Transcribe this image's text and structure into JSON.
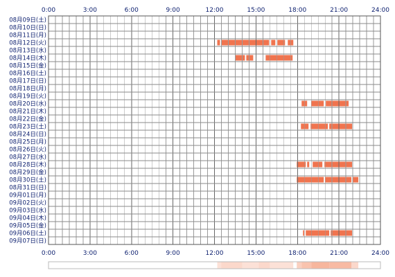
{
  "chart_data": {
    "type": "heatmap",
    "title": "",
    "xlabel": "",
    "ylabel": "",
    "x_range_hours": [
      0,
      24
    ],
    "x_ticks": [
      "0:00",
      "3:00",
      "6:00",
      "9:00",
      "12:00",
      "15:00",
      "18:00",
      "21:00",
      "24:00"
    ],
    "grid": true,
    "rows": [
      "08月09日(土)",
      "08月10日(日)",
      "08月11日(月)",
      "08月12日(火)",
      "08月13日(水)",
      "08月14日(木)",
      "08月15日(金)",
      "08月16日(土)",
      "08月17日(日)",
      "08月18日(月)",
      "08月19日(火)",
      "08月20日(水)",
      "08月21日(木)",
      "08月22日(金)",
      "08月23日(土)",
      "08月24日(日)",
      "08月25日(月)",
      "08月26日(火)",
      "08月27日(水)",
      "08月28日(木)",
      "08月29日(金)",
      "08月30日(土)",
      "08月31日(日)",
      "09月01日(月)",
      "09月02日(火)",
      "09月03日(水)",
      "09月04日(木)",
      "09月05日(金)",
      "09月06日(土)",
      "09月07日(日)"
    ],
    "activity_color": "#f0744f",
    "summary_color": "#f6a98c",
    "activity": [
      {
        "row": "08月12日(火)",
        "start": 12.2,
        "end": 12.4
      },
      {
        "row": "08月12日(火)",
        "start": 12.5,
        "end": 15.95
      },
      {
        "row": "08月12日(火)",
        "start": 16.1,
        "end": 16.4
      },
      {
        "row": "08月12日(火)",
        "start": 16.55,
        "end": 17.1
      },
      {
        "row": "08月12日(火)",
        "start": 17.3,
        "end": 17.7
      },
      {
        "row": "08月14日(木)",
        "start": 13.5,
        "end": 14.2
      },
      {
        "row": "08月14日(木)",
        "start": 14.3,
        "end": 14.8
      },
      {
        "row": "08月14日(木)",
        "start": 15.7,
        "end": 17.65
      },
      {
        "row": "08月20日(水)",
        "start": 18.3,
        "end": 18.7
      },
      {
        "row": "08月20日(水)",
        "start": 19.0,
        "end": 19.9
      },
      {
        "row": "08月20日(水)",
        "start": 20.05,
        "end": 21.7
      },
      {
        "row": "08月23日(土)",
        "start": 18.25,
        "end": 18.8
      },
      {
        "row": "08月23日(土)",
        "start": 18.95,
        "end": 20.2
      },
      {
        "row": "08月23日(土)",
        "start": 20.3,
        "end": 21.95
      },
      {
        "row": "08月28日(木)",
        "start": 17.95,
        "end": 18.6
      },
      {
        "row": "08月28日(木)",
        "start": 18.7,
        "end": 18.85
      },
      {
        "row": "08月28日(木)",
        "start": 19.1,
        "end": 19.8
      },
      {
        "row": "08月28日(木)",
        "start": 19.95,
        "end": 21.95
      },
      {
        "row": "08月30日(土)",
        "start": 17.95,
        "end": 19.9
      },
      {
        "row": "08月30日(土)",
        "start": 20.0,
        "end": 21.9
      },
      {
        "row": "08月30日(土)",
        "start": 22.0,
        "end": 22.4
      },
      {
        "row": "09月06日(土)",
        "start": 18.4,
        "end": 18.5
      },
      {
        "row": "09月06日(土)",
        "start": 18.6,
        "end": 20.3
      },
      {
        "row": "09月06日(土)",
        "start": 20.4,
        "end": 21.95
      }
    ],
    "summary_bands": [
      {
        "start": 12.2,
        "end": 12.5,
        "intensity": 0.35
      },
      {
        "start": 12.5,
        "end": 14.0,
        "intensity": 0.45
      },
      {
        "start": 14.0,
        "end": 15.2,
        "intensity": 0.35
      },
      {
        "start": 15.2,
        "end": 16.0,
        "intensity": 0.45
      },
      {
        "start": 16.0,
        "end": 17.7,
        "intensity": 0.35
      },
      {
        "start": 17.95,
        "end": 18.3,
        "intensity": 0.55
      },
      {
        "start": 18.3,
        "end": 19.0,
        "intensity": 0.7
      },
      {
        "start": 19.0,
        "end": 20.3,
        "intensity": 0.85
      },
      {
        "start": 20.3,
        "end": 21.9,
        "intensity": 0.8
      },
      {
        "start": 21.9,
        "end": 22.4,
        "intensity": 0.45
      }
    ]
  }
}
